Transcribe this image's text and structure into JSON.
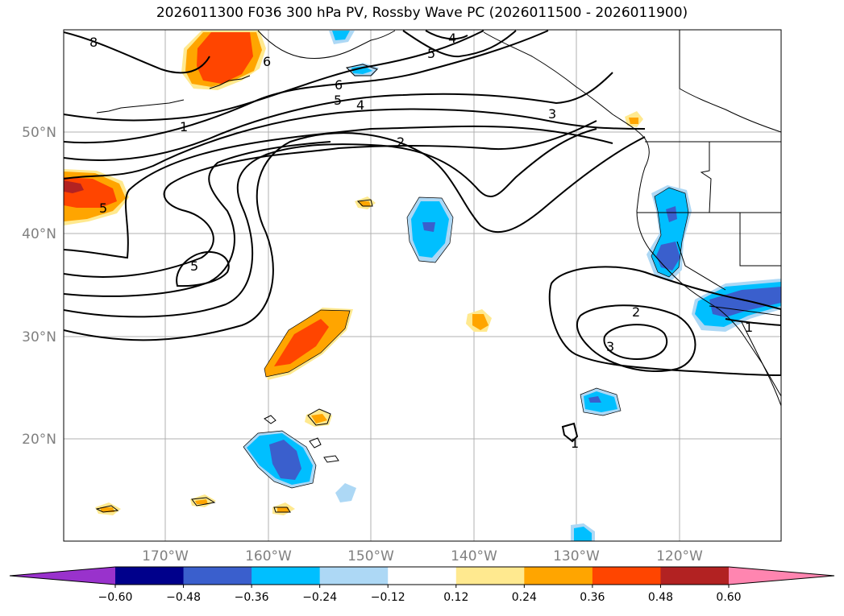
{
  "title": "2026011300 F036 300 hPa PV, Rossby Wave PC (2026011500 - 2026011900)",
  "map": {
    "lat_labels": [
      "50°N",
      "40°N",
      "30°N",
      "20°N"
    ],
    "lon_labels": [
      "170°W",
      "160°W",
      "150°W",
      "140°W",
      "130°W",
      "120°W"
    ],
    "contour_labels": [
      "8",
      "6",
      "4",
      "5",
      "6",
      "5",
      "4",
      "1",
      "2",
      "3",
      "5",
      "5",
      "2",
      "3",
      "1",
      "1"
    ]
  },
  "colorbar": {
    "ticks": [
      "−0.60",
      "−0.48",
      "−0.36",
      "−0.24",
      "−0.12",
      "0.12",
      "0.24",
      "0.36",
      "0.48",
      "0.60"
    ],
    "colors": [
      "#9932cc",
      "#00008b",
      "#3a5fcd",
      "#00bfff",
      "#add8f5",
      "#ffffff",
      "#ffe98f",
      "#ffa500",
      "#ff4500",
      "#b22222",
      "#ff85b0"
    ]
  }
}
